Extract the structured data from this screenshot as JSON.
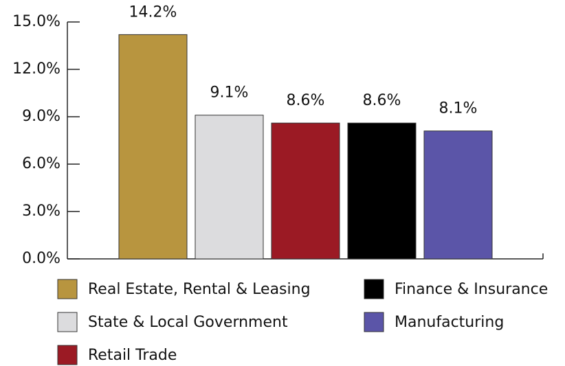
{
  "chart_data": {
    "type": "bar",
    "categories": [
      "Real Estate, Rental & Leasing",
      "State & Local Government",
      "Retail Trade",
      "Finance & Insurance",
      "Manufacturing"
    ],
    "values": [
      14.2,
      9.1,
      8.6,
      8.6,
      8.1
    ],
    "value_labels": [
      "14.2%",
      "9.1%",
      "8.6%",
      "8.6%",
      "8.1%"
    ],
    "colors": [
      "#b8953f",
      "#dcdcde",
      "#9b1a24",
      "#000000",
      "#5b55a8"
    ],
    "ylim": [
      0,
      15
    ],
    "yticks": [
      {
        "value": 0,
        "label": "0.0%"
      },
      {
        "value": 3,
        "label": "3.0%"
      },
      {
        "value": 6,
        "label": "6.0%"
      },
      {
        "value": 9,
        "label": "9.0%"
      },
      {
        "value": 12,
        "label": "12.0%"
      },
      {
        "value": 15,
        "label": "15.0%"
      }
    ],
    "legend": "bottom"
  }
}
